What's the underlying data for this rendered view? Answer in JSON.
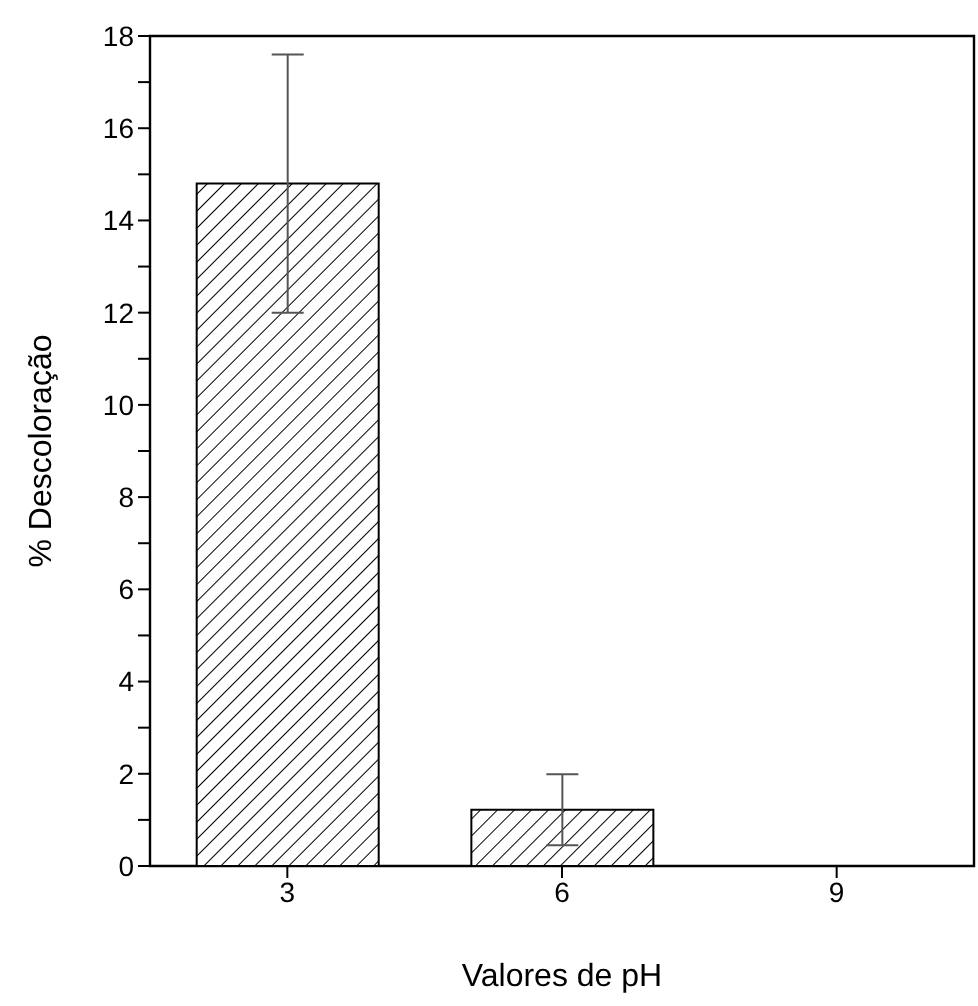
{
  "chart_data": {
    "type": "bar",
    "xlabel": "Valores de pH",
    "ylabel": "% Descoloração",
    "categories": [
      "3",
      "6",
      "9"
    ],
    "values": [
      14.8,
      1.22,
      0
    ],
    "errors": [
      2.8,
      0.77,
      null
    ],
    "color": "#000000",
    "ylim": [
      0,
      18
    ],
    "yticks": [
      0,
      {
        "value": 1,
        "label": null
      },
      2,
      {
        "value": 3,
        "label": null
      },
      4,
      {
        "value": 5,
        "label": null
      },
      6,
      {
        "value": 7,
        "label": null
      },
      8,
      {
        "value": 9,
        "label": null
      },
      10,
      {
        "value": 11,
        "label": null
      },
      12,
      {
        "value": 13,
        "label": null
      },
      14,
      {
        "value": 15,
        "label": null
      },
      16,
      {
        "value": 17,
        "label": null
      },
      18
    ],
    "grid": false,
    "legend": false
  }
}
